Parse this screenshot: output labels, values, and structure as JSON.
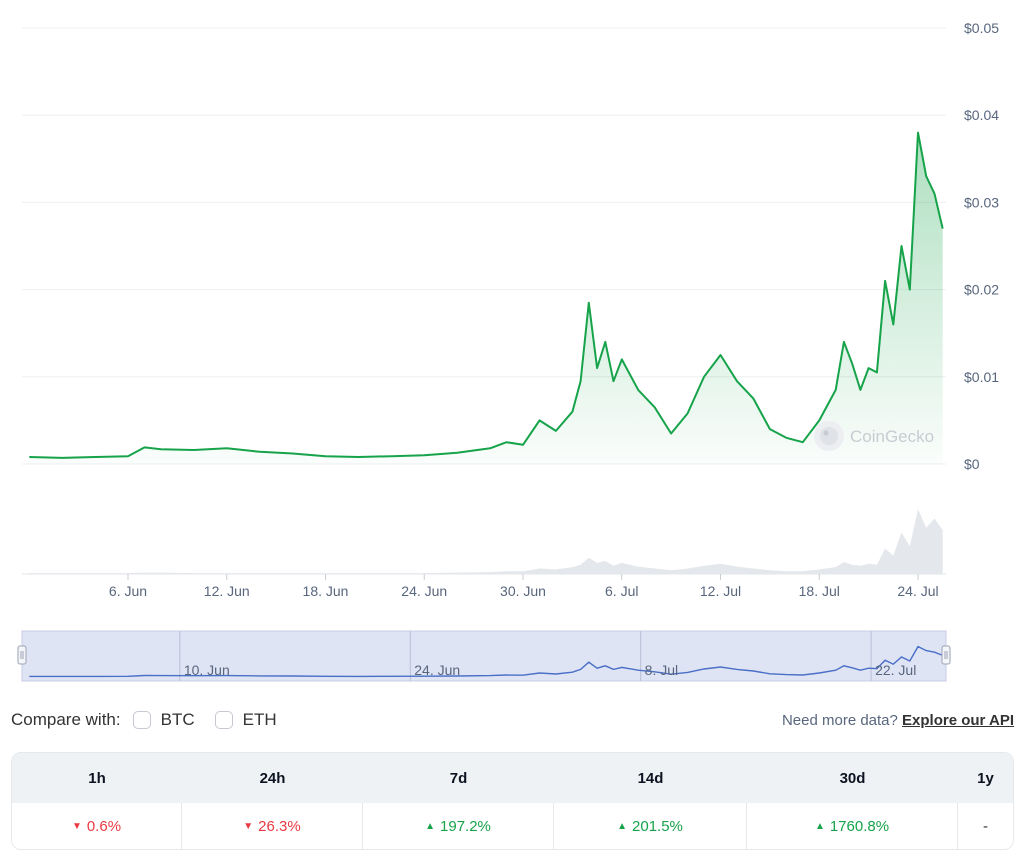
{
  "chart_data": {
    "type": "area",
    "ylabel": "",
    "xlabel": "",
    "y_ticks": [
      "$0.05",
      "$0.04",
      "$0.03",
      "$0.02",
      "$0.01",
      "$0"
    ],
    "ylim": [
      0,
      0.05
    ],
    "x_ticks": [
      "6. Jun",
      "12. Jun",
      "18. Jun",
      "24. Jun",
      "30. Jun",
      "6. Jul",
      "12. Jul",
      "18. Jul",
      "24. Jul"
    ],
    "series": [
      {
        "color": "#16a34a",
        "x": [
          "2024-05-31",
          "2024-06-02",
          "2024-06-04",
          "2024-06-06",
          "2024-06-07",
          "2024-06-08",
          "2024-06-10",
          "2024-06-12",
          "2024-06-14",
          "2024-06-16",
          "2024-06-18",
          "2024-06-20",
          "2024-06-22",
          "2024-06-24",
          "2024-06-26",
          "2024-06-28",
          "2024-06-29",
          "2024-06-30",
          "2024-07-01",
          "2024-07-02",
          "2024-07-03",
          "2024-07-03T12",
          "2024-07-04",
          "2024-07-04T12",
          "2024-07-05",
          "2024-07-05T12",
          "2024-07-06",
          "2024-07-07",
          "2024-07-08",
          "2024-07-09",
          "2024-07-10",
          "2024-07-11",
          "2024-07-12",
          "2024-07-13",
          "2024-07-14",
          "2024-07-15",
          "2024-07-16",
          "2024-07-17",
          "2024-07-18",
          "2024-07-19",
          "2024-07-19T12",
          "2024-07-20",
          "2024-07-20T12",
          "2024-07-21",
          "2024-07-21T12",
          "2024-07-22",
          "2024-07-22T12",
          "2024-07-23",
          "2024-07-23T12",
          "2024-07-24",
          "2024-07-24T12",
          "2024-07-25",
          "2024-07-25T12"
        ],
        "values": [
          0.0008,
          0.0007,
          0.0008,
          0.0009,
          0.0019,
          0.0017,
          0.0016,
          0.0018,
          0.0014,
          0.0012,
          0.0009,
          0.0008,
          0.0009,
          0.001,
          0.0013,
          0.0018,
          0.0025,
          0.0022,
          0.005,
          0.0038,
          0.006,
          0.0095,
          0.0185,
          0.011,
          0.014,
          0.0095,
          0.012,
          0.0085,
          0.0065,
          0.0035,
          0.0058,
          0.01,
          0.0125,
          0.0095,
          0.0075,
          0.004,
          0.003,
          0.0025,
          0.005,
          0.0085,
          0.014,
          0.0115,
          0.0085,
          0.011,
          0.0105,
          0.021,
          0.016,
          0.025,
          0.02,
          0.038,
          0.033,
          0.031,
          0.027
        ]
      }
    ],
    "volume": [
      0.2,
      0.2,
      0.2,
      0.2,
      0.3,
      0.3,
      0.2,
      0.2,
      0.2,
      0.2,
      0.2,
      0.2,
      0.2,
      0.2,
      0.3,
      0.4,
      0.6,
      0.6,
      1.2,
      1.0,
      1.5,
      2.0,
      3.5,
      2.4,
      2.8,
      1.8,
      2.4,
      1.6,
      1.2,
      0.8,
      1.2,
      1.8,
      2.2,
      1.6,
      1.2,
      0.8,
      0.6,
      0.6,
      1.0,
      1.5,
      2.6,
      2.0,
      1.8,
      2.2,
      2.0,
      5.5,
      4.0,
      9.0,
      6.0,
      14.0,
      10.0,
      12.0,
      9.5
    ],
    "navigator_ticks": [
      "10. Jun",
      "24. Jun",
      "8. Jul",
      "22. Jul"
    ],
    "watermark": "CoinGecko",
    "grid": true
  },
  "compare": {
    "label": "Compare with:",
    "options": [
      "BTC",
      "ETH"
    ],
    "api_prompt": "Need more data?",
    "api_link": "Explore our API"
  },
  "performance": {
    "headers": [
      "1h",
      "24h",
      "7d",
      "14d",
      "30d",
      "1y"
    ],
    "values": [
      {
        "text": "0.6%",
        "dir": "down"
      },
      {
        "text": "26.3%",
        "dir": "down"
      },
      {
        "text": "197.2%",
        "dir": "up"
      },
      {
        "text": "201.5%",
        "dir": "up"
      },
      {
        "text": "1760.8%",
        "dir": "up"
      },
      {
        "text": "-",
        "dir": "none"
      }
    ],
    "colors": {
      "up": "#16a34a",
      "down": "#ea3943"
    }
  }
}
